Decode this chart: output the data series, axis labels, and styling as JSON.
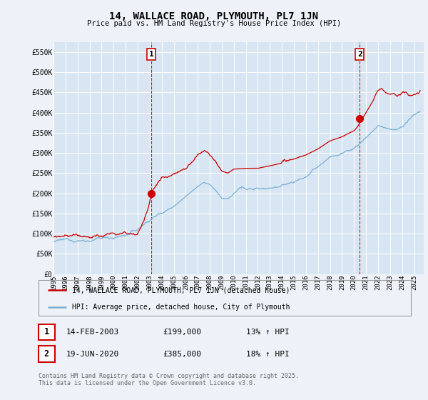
{
  "title": "14, WALLACE ROAD, PLYMOUTH, PL7 1JN",
  "subtitle": "Price paid vs. HM Land Registry's House Price Index (HPI)",
  "ylabel_ticks": [
    "£0",
    "£50K",
    "£100K",
    "£150K",
    "£200K",
    "£250K",
    "£300K",
    "£350K",
    "£400K",
    "£450K",
    "£500K",
    "£550K"
  ],
  "ytick_values": [
    0,
    50000,
    100000,
    150000,
    200000,
    250000,
    300000,
    350000,
    400000,
    450000,
    500000,
    550000
  ],
  "ylim": [
    0,
    575000
  ],
  "xlim_start": 1995.0,
  "xlim_end": 2025.8,
  "background_color": "#eef2f8",
  "plot_bg_color": "#d8e6f3",
  "grid_color": "#ffffff",
  "red_line_color": "#cc0000",
  "blue_line_color": "#7ab0d4",
  "marker1_x": 2003.12,
  "marker1_y": 199000,
  "marker2_x": 2020.47,
  "marker2_y": 385000,
  "legend_label1": "14, WALLACE ROAD, PLYMOUTH, PL7 1JN (detached house)",
  "legend_label2": "HPI: Average price, detached house, City of Plymouth",
  "footer_text": "Contains HM Land Registry data © Crown copyright and database right 2025.\nThis data is licensed under the Open Government Licence v3.0.",
  "table_row1": [
    "1",
    "14-FEB-2003",
    "£199,000",
    "13% ↑ HPI"
  ],
  "table_row2": [
    "2",
    "19-JUN-2020",
    "£385,000",
    "18% ↑ HPI"
  ],
  "xtick_years": [
    1995,
    1996,
    1997,
    1998,
    1999,
    2000,
    2001,
    2002,
    2003,
    2004,
    2005,
    2006,
    2007,
    2008,
    2009,
    2010,
    2011,
    2012,
    2013,
    2014,
    2015,
    2016,
    2017,
    2018,
    2019,
    2020,
    2021,
    2022,
    2023,
    2024,
    2025
  ]
}
